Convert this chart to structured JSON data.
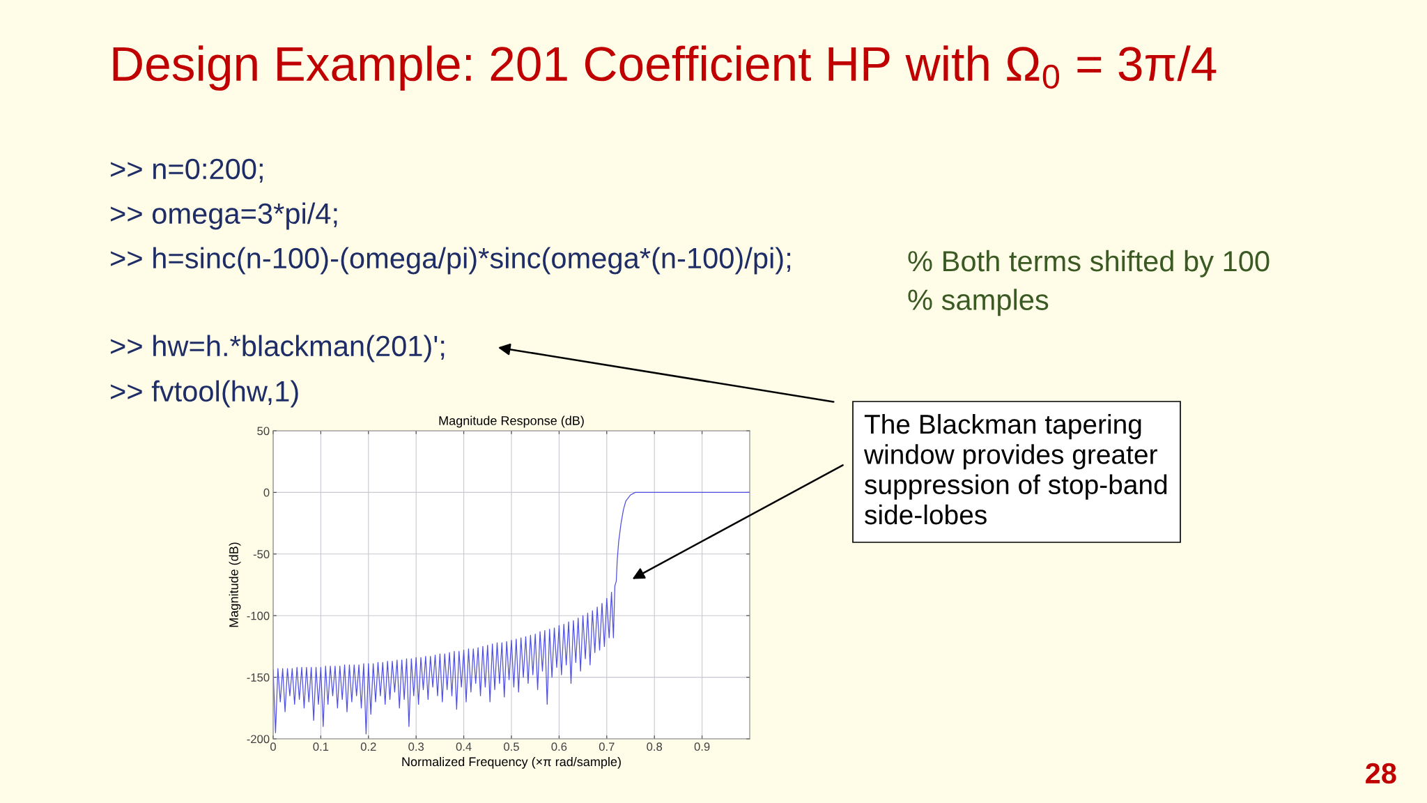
{
  "chart_data": {
    "type": "line",
    "title": "Design Example: 201 Coefficient HP with Ω$_{0}$ = 3π/4",
    "subtitle": "Magnitude Response (dB)",
    "xlabel": "Normalized Frequency (×π rad/sample)",
    "ylabel": "Magnitude (dB)",
    "xlim": [
      0,
      1
    ],
    "ylim": [
      -200,
      50
    ],
    "xticks": [
      0,
      0.1,
      0.2,
      0.3,
      0.4,
      0.5,
      0.6,
      0.7,
      0.8,
      0.9
    ],
    "yticks": [
      -200,
      -150,
      -100,
      -50,
      0,
      50
    ],
    "grid": true,
    "annotations": [
      ">> n=0:200;",
      ">> omega=3*pi/4;",
      ">> h=sinc(n-100)-(omega/pi)*sinc(omega*(n-100)/pi);",
      "% Both terms shifted by 100\n% samples",
      ">> hw=h.*blackman(201)';",
      ">> fvtool(hw,1)",
      "The Blackman tapering\nwindow provides greater\nsuppression of stop-band\nside-lobes",
      "28"
    ],
    "series": [
      {
        "color": "#5050e0",
        "x": [
          0.0,
          0.005,
          0.01,
          0.015,
          0.02,
          0.025,
          0.03,
          0.035,
          0.04,
          0.045,
          0.05,
          0.055,
          0.06,
          0.065,
          0.07,
          0.075,
          0.08,
          0.085,
          0.09,
          0.095,
          0.1,
          0.105,
          0.11,
          0.115,
          0.12,
          0.125,
          0.13,
          0.135,
          0.14,
          0.145,
          0.15,
          0.155,
          0.16,
          0.165,
          0.17,
          0.175,
          0.18,
          0.185,
          0.19,
          0.195,
          0.2,
          0.205,
          0.21,
          0.215,
          0.22,
          0.225,
          0.23,
          0.235,
          0.24,
          0.245,
          0.25,
          0.255,
          0.26,
          0.265,
          0.27,
          0.275,
          0.28,
          0.285,
          0.29,
          0.295,
          0.3,
          0.305,
          0.31,
          0.315,
          0.32,
          0.325,
          0.33,
          0.335,
          0.34,
          0.345,
          0.35,
          0.355,
          0.36,
          0.365,
          0.37,
          0.375,
          0.38,
          0.385,
          0.39,
          0.395,
          0.4,
          0.405,
          0.41,
          0.415,
          0.42,
          0.425,
          0.43,
          0.435,
          0.44,
          0.445,
          0.45,
          0.455,
          0.46,
          0.465,
          0.47,
          0.475,
          0.48,
          0.485,
          0.49,
          0.495,
          0.5,
          0.505,
          0.51,
          0.515,
          0.52,
          0.525,
          0.53,
          0.535,
          0.54,
          0.545,
          0.55,
          0.555,
          0.56,
          0.565,
          0.57,
          0.575,
          0.58,
          0.585,
          0.59,
          0.595,
          0.6,
          0.605,
          0.61,
          0.615,
          0.62,
          0.625,
          0.63,
          0.635,
          0.64,
          0.645,
          0.65,
          0.655,
          0.66,
          0.665,
          0.67,
          0.675,
          0.68,
          0.685,
          0.69,
          0.695,
          0.7,
          0.705,
          0.71,
          0.714,
          0.717,
          0.72,
          0.722,
          0.725,
          0.73,
          0.735,
          0.74,
          0.75,
          0.76,
          1.0
        ],
        "values": [
          -144,
          -195,
          -143,
          -170,
          -143,
          -178,
          -143,
          -165,
          -143,
          -172,
          -142,
          -168,
          -142,
          -175,
          -142,
          -170,
          -142,
          -185,
          -142,
          -172,
          -142,
          -190,
          -141,
          -172,
          -141,
          -165,
          -141,
          -175,
          -141,
          -168,
          -140,
          -178,
          -140,
          -170,
          -140,
          -165,
          -140,
          -175,
          -139,
          -196,
          -139,
          -180,
          -139,
          -170,
          -138,
          -165,
          -138,
          -172,
          -137,
          -168,
          -137,
          -162,
          -136,
          -175,
          -136,
          -168,
          -135,
          -190,
          -135,
          -165,
          -134,
          -172,
          -134,
          -160,
          -133,
          -168,
          -133,
          -158,
          -132,
          -165,
          -131,
          -170,
          -131,
          -160,
          -130,
          -165,
          -129,
          -176,
          -129,
          -158,
          -128,
          -170,
          -127,
          -162,
          -127,
          -155,
          -126,
          -165,
          -125,
          -158,
          -124,
          -170,
          -123,
          -160,
          -122,
          -155,
          -122,
          -166,
          -121,
          -152,
          -120,
          -158,
          -119,
          -162,
          -118,
          -150,
          -117,
          -155,
          -116,
          -148,
          -115,
          -160,
          -113,
          -145,
          -112,
          -172,
          -111,
          -150,
          -110,
          -142,
          -108,
          -148,
          -107,
          -140,
          -105,
          -155,
          -104,
          -138,
          -102,
          -145,
          -100,
          -135,
          -98,
          -140,
          -96,
          -130,
          -93,
          -128,
          -90,
          -125,
          -86,
          -118,
          -81,
          -118,
          -76,
          -72,
          -55,
          -40,
          -25,
          -14,
          -7,
          -2,
          0,
          0
        ]
      }
    ]
  }
}
